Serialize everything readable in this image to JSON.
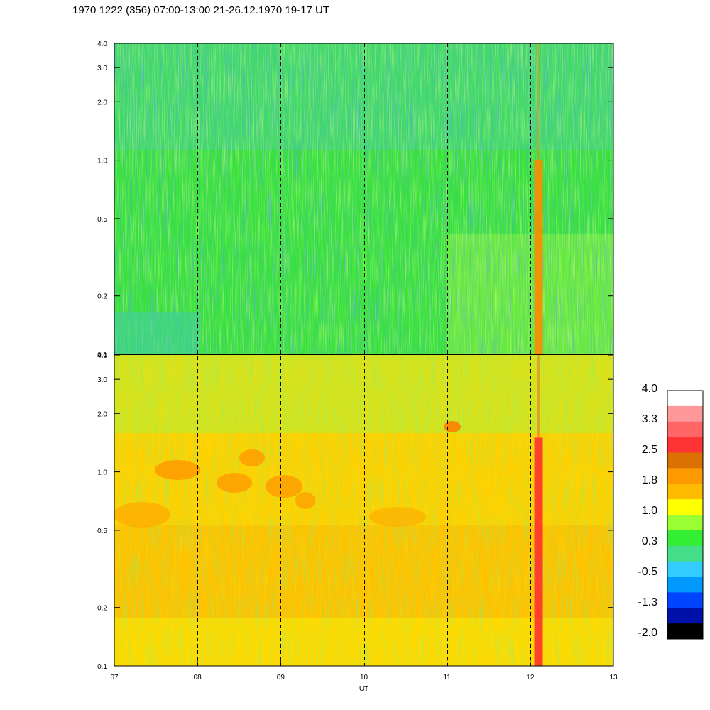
{
  "title": "1970 1222 (356) 07:00-13:00 21-26.12.1970  19-17 UT",
  "chart_data": [
    {
      "type": "heatmap",
      "panel": "upper",
      "y_scale": "log",
      "ylim": [
        0.1,
        4.0
      ],
      "yticks": [
        "4.0",
        "3.0",
        "2.0",
        "1.0",
        "0.5",
        "0.2",
        "0.1"
      ],
      "xlim": [
        7,
        13
      ],
      "dominant_color_levels": [
        -0.5,
        0.3,
        1.0
      ],
      "events": [
        {
          "x": 12.1,
          "level": 2.0,
          "note": "narrow strong band at about 12:05 UT, mainly below 1.0"
        }
      ]
    },
    {
      "type": "heatmap",
      "panel": "lower",
      "y_scale": "log",
      "ylim": [
        0.1,
        4.0
      ],
      "yticks": [
        "4.0",
        "3.0",
        "2.0",
        "1.0",
        "0.5",
        "0.2",
        "0.1"
      ],
      "xlim": [
        7,
        13
      ],
      "xticks": [
        "07",
        "08",
        "09",
        "10",
        "11",
        "12",
        "13"
      ],
      "xlabel": "UT",
      "dominant_color_levels": [
        1.0,
        1.8
      ],
      "events": [
        {
          "x": 12.1,
          "level": 3.0,
          "note": "narrow strong band at about 12:05 UT, mainly below 1.5"
        }
      ]
    }
  ],
  "dashed_hours": [
    8,
    9,
    10,
    11,
    12
  ],
  "colorbar": {
    "labels": [
      "4.0",
      "3.3",
      "2.5",
      "1.8",
      "1.0",
      "0.3",
      "-0.5",
      "-1.3",
      "-2.0"
    ],
    "colors_top_to_bottom": [
      "#ffffff",
      "#ff9999",
      "#ff6666",
      "#ff3333",
      "#d97000",
      "#ff9900",
      "#ffbb00",
      "#ffff00",
      "#99ff33",
      "#33ee33",
      "#44dd88",
      "#33ccff",
      "#0099ff",
      "#0044ff",
      "#0011aa",
      "#000000"
    ]
  }
}
